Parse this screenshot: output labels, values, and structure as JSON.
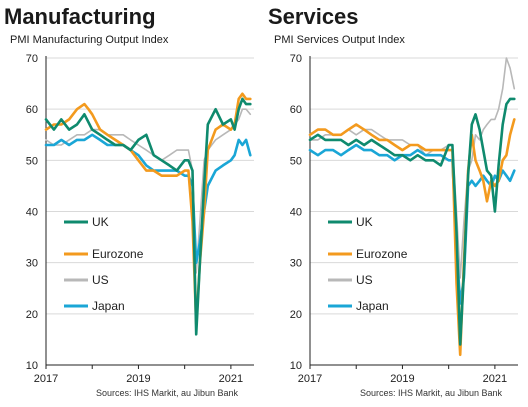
{
  "charts": [
    {
      "title": "Manufacturing",
      "subtitle": "PMI Manufacturing Output Index",
      "source": "Sources: IHS Markit, au Jibun Bank"
    },
    {
      "title": "Services",
      "subtitle": "PMI Services Output Index",
      "source": "Sources: IHS Markit, au Jibun Bank"
    }
  ],
  "colors": {
    "UK": "#0f8a6e",
    "Eurozone": "#f39a1e",
    "US": "#b8b8b8",
    "Japan": "#1aa6d6",
    "grid": "#d9d9d9",
    "axis": "#222222"
  },
  "chart_data": [
    {
      "type": "line",
      "title": "Manufacturing",
      "subtitle": "PMI Manufacturing Output Index",
      "ylim": [
        10,
        70
      ],
      "yticks": [
        10,
        20,
        30,
        40,
        50,
        60,
        70
      ],
      "xlim": [
        2017.0,
        2021.5
      ],
      "xticks": [
        2017,
        2019,
        2021
      ],
      "grid": true,
      "legend": {
        "position": "bottom-left",
        "entries": [
          "UK",
          "Eurozone",
          "US",
          "Japan"
        ]
      },
      "series": [
        {
          "name": "UK",
          "x": [
            2017.0,
            2017.17,
            2017.33,
            2017.5,
            2017.67,
            2017.83,
            2018.0,
            2018.17,
            2018.33,
            2018.5,
            2018.67,
            2018.83,
            2019.0,
            2019.17,
            2019.33,
            2019.5,
            2019.67,
            2019.83,
            2020.0,
            2020.08,
            2020.17,
            2020.25,
            2020.33,
            2020.42,
            2020.5,
            2020.67,
            2020.83,
            2021.0,
            2021.08,
            2021.17,
            2021.25,
            2021.33,
            2021.42
          ],
          "values": [
            58,
            56,
            58,
            56,
            57,
            59,
            56,
            55,
            54,
            53,
            53,
            52,
            54,
            55,
            51,
            50,
            49,
            48,
            50,
            50,
            48,
            16,
            30,
            45,
            57,
            60,
            57,
            58,
            56,
            60,
            62,
            61,
            61
          ]
        },
        {
          "name": "Eurozone",
          "x": [
            2017.0,
            2017.17,
            2017.33,
            2017.5,
            2017.67,
            2017.83,
            2017.92,
            2018.0,
            2018.17,
            2018.33,
            2018.5,
            2018.67,
            2018.83,
            2019.0,
            2019.17,
            2019.33,
            2019.5,
            2019.67,
            2019.83,
            2020.0,
            2020.08,
            2020.17,
            2020.25,
            2020.33,
            2020.42,
            2020.5,
            2020.67,
            2020.83,
            2021.0,
            2021.08,
            2021.17,
            2021.25,
            2021.33,
            2021.42
          ],
          "values": [
            56,
            57,
            57,
            58,
            60,
            61,
            60,
            59,
            56,
            55,
            54,
            53,
            52,
            50,
            48,
            48,
            47,
            47,
            47,
            48,
            48,
            38,
            18,
            30,
            40,
            52,
            56,
            57,
            56,
            57,
            62,
            63,
            62,
            62
          ]
        },
        {
          "name": "US",
          "x": [
            2017.0,
            2017.17,
            2017.33,
            2017.5,
            2017.67,
            2017.83,
            2018.0,
            2018.17,
            2018.33,
            2018.5,
            2018.67,
            2018.83,
            2019.0,
            2019.17,
            2019.33,
            2019.5,
            2019.67,
            2019.83,
            2020.0,
            2020.08,
            2020.17,
            2020.25,
            2020.33,
            2020.42,
            2020.5,
            2020.67,
            2020.83,
            2021.0,
            2021.08,
            2021.17,
            2021.25,
            2021.33,
            2021.42
          ],
          "values": [
            54,
            53,
            53,
            54,
            55,
            55,
            56,
            56,
            55,
            55,
            55,
            54,
            53,
            52,
            51,
            50,
            51,
            52,
            52,
            52,
            48,
            28,
            38,
            50,
            52,
            54,
            55,
            56,
            57,
            58,
            60,
            60,
            59
          ]
        },
        {
          "name": "Japan",
          "x": [
            2017.0,
            2017.17,
            2017.33,
            2017.5,
            2017.67,
            2017.83,
            2018.0,
            2018.17,
            2018.33,
            2018.5,
            2018.67,
            2018.83,
            2019.0,
            2019.17,
            2019.33,
            2019.5,
            2019.67,
            2019.83,
            2020.0,
            2020.08,
            2020.17,
            2020.25,
            2020.33,
            2020.42,
            2020.5,
            2020.67,
            2020.83,
            2021.0,
            2021.08,
            2021.17,
            2021.25,
            2021.33,
            2021.42
          ],
          "values": [
            53,
            53,
            54,
            53,
            54,
            54,
            55,
            54,
            53,
            53,
            53,
            52,
            51,
            49,
            48,
            48,
            48,
            48,
            47,
            47,
            45,
            30,
            34,
            40,
            45,
            48,
            49,
            50,
            51,
            54,
            53,
            54,
            51
          ]
        }
      ]
    },
    {
      "type": "line",
      "title": "Services",
      "subtitle": "PMI Services Output Index",
      "ylim": [
        10,
        70
      ],
      "yticks": [
        10,
        20,
        30,
        40,
        50,
        60,
        70
      ],
      "xlim": [
        2017.0,
        2021.5
      ],
      "xticks": [
        2017,
        2019,
        2021
      ],
      "grid": true,
      "legend": {
        "position": "bottom-left",
        "entries": [
          "UK",
          "Eurozone",
          "US",
          "Japan"
        ]
      },
      "series": [
        {
          "name": "UK",
          "x": [
            2017.0,
            2017.17,
            2017.33,
            2017.5,
            2017.67,
            2017.83,
            2018.0,
            2018.17,
            2018.33,
            2018.5,
            2018.67,
            2018.83,
            2019.0,
            2019.17,
            2019.33,
            2019.5,
            2019.67,
            2019.83,
            2020.0,
            2020.08,
            2020.17,
            2020.25,
            2020.33,
            2020.42,
            2020.5,
            2020.58,
            2020.67,
            2020.75,
            2020.83,
            2020.92,
            2021.0,
            2021.08,
            2021.17,
            2021.25,
            2021.33,
            2021.42
          ],
          "values": [
            54,
            55,
            54,
            54,
            54,
            53,
            54,
            53,
            54,
            53,
            52,
            51,
            51,
            50,
            51,
            50,
            50,
            49,
            53,
            53,
            36,
            14,
            28,
            47,
            57,
            59,
            56,
            52,
            48,
            47,
            40,
            49,
            57,
            61,
            62,
            62
          ]
        },
        {
          "name": "Eurozone",
          "x": [
            2017.0,
            2017.17,
            2017.33,
            2017.5,
            2017.67,
            2017.83,
            2018.0,
            2018.17,
            2018.33,
            2018.5,
            2018.67,
            2018.83,
            2019.0,
            2019.17,
            2019.33,
            2019.5,
            2019.67,
            2019.83,
            2020.0,
            2020.08,
            2020.17,
            2020.25,
            2020.33,
            2020.42,
            2020.5,
            2020.58,
            2020.67,
            2020.75,
            2020.83,
            2020.92,
            2021.0,
            2021.08,
            2021.17,
            2021.25,
            2021.33,
            2021.42
          ],
          "values": [
            55,
            56,
            56,
            55,
            55,
            56,
            57,
            56,
            55,
            54,
            54,
            53,
            52,
            53,
            53,
            52,
            52,
            52,
            52,
            52,
            26,
            12,
            30,
            48,
            55,
            50,
            48,
            46,
            42,
            46,
            45,
            46,
            50,
            51,
            55,
            58
          ]
        },
        {
          "name": "US",
          "x": [
            2017.0,
            2017.17,
            2017.33,
            2017.5,
            2017.67,
            2017.83,
            2018.0,
            2018.17,
            2018.33,
            2018.5,
            2018.67,
            2018.83,
            2019.0,
            2019.17,
            2019.33,
            2019.5,
            2019.67,
            2019.83,
            2020.0,
            2020.08,
            2020.17,
            2020.25,
            2020.33,
            2020.42,
            2020.5,
            2020.58,
            2020.67,
            2020.75,
            2020.83,
            2020.92,
            2021.0,
            2021.08,
            2021.17,
            2021.25,
            2021.33,
            2021.42
          ],
          "values": [
            54,
            54,
            55,
            55,
            55,
            56,
            55,
            56,
            56,
            55,
            54,
            54,
            54,
            53,
            53,
            51,
            52,
            52,
            53,
            53,
            40,
            27,
            38,
            48,
            50,
            55,
            54,
            56,
            57,
            58,
            58,
            60,
            64,
            70,
            68,
            64
          ]
        },
        {
          "name": "Japan",
          "x": [
            2017.0,
            2017.17,
            2017.33,
            2017.5,
            2017.67,
            2017.83,
            2018.0,
            2018.17,
            2018.33,
            2018.5,
            2018.67,
            2018.83,
            2019.0,
            2019.17,
            2019.33,
            2019.5,
            2019.67,
            2019.83,
            2020.0,
            2020.08,
            2020.17,
            2020.25,
            2020.33,
            2020.42,
            2020.5,
            2020.58,
            2020.67,
            2020.75,
            2020.83,
            2020.92,
            2021.0,
            2021.08,
            2021.17,
            2021.25,
            2021.33,
            2021.42
          ],
          "values": [
            52,
            51,
            52,
            52,
            51,
            52,
            53,
            52,
            52,
            51,
            51,
            50,
            51,
            51,
            52,
            51,
            51,
            51,
            50,
            50,
            33,
            22,
            27,
            45,
            46,
            45,
            46,
            47,
            46,
            45,
            47,
            46,
            48,
            47,
            46,
            48
          ]
        }
      ]
    }
  ]
}
